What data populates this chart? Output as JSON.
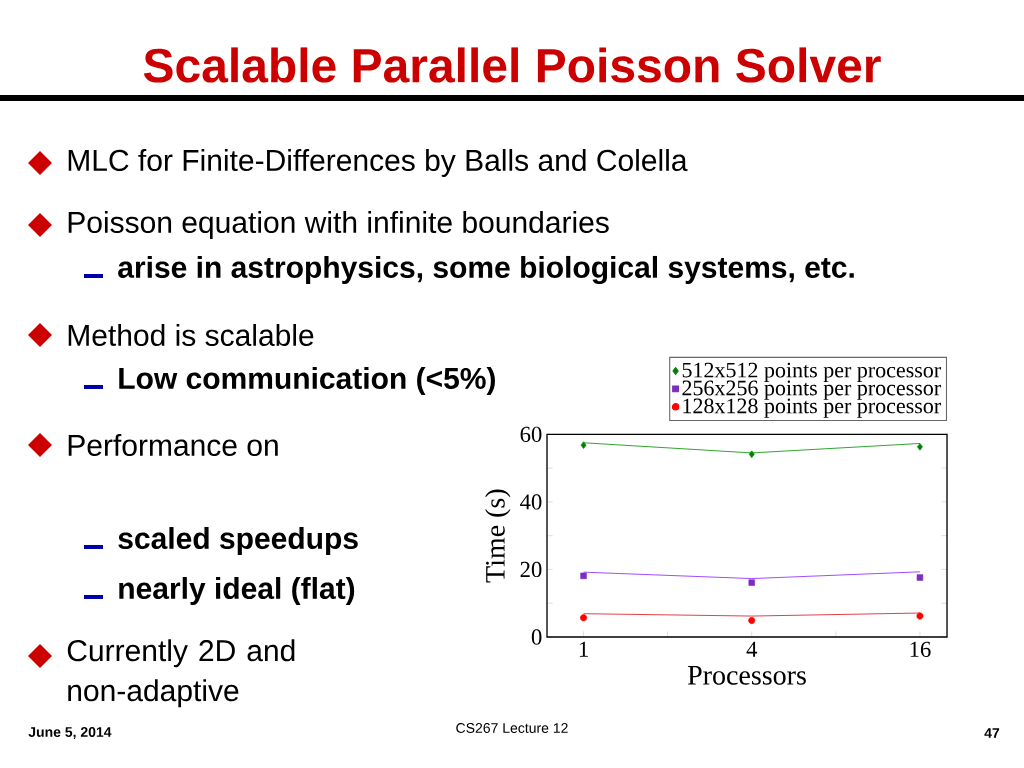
{
  "chart_data": {
    "type": "scatter",
    "title": "Scalable Parallel Poisson Solver",
    "xlabel": "Processors",
    "ylabel": "Time (s)",
    "x": [
      1,
      4,
      16
    ],
    "log": "x",
    "xlim": [
      0.74,
      20
    ],
    "ylim": [
      0,
      60
    ],
    "xticks": [
      1,
      4,
      16,
      {
        "value": 2,
        "label": null
      },
      {
        "value": 8,
        "label": null
      }
    ],
    "yticks": [
      0,
      20,
      40,
      60,
      {
        "value": 10,
        "label": null
      },
      {
        "value": 30,
        "label": null
      },
      {
        "value": 50,
        "label": null
      }
    ],
    "legend": "top right",
    "series": [
      {
        "name": "512x512 points per processor",
        "marker": "diamond",
        "color": "#008000",
        "values": [
          56.8,
          54.1,
          56.3
        ]
      },
      {
        "name": "256x256 points per processor",
        "marker": "square",
        "color": "#7b2fc0",
        "values": [
          18.1,
          16.1,
          17.6
        ]
      },
      {
        "name": "128x128 points per processor",
        "marker": "circle",
        "color": "#ff0000",
        "values": [
          5.7,
          4.9,
          6.2
        ]
      },
      {
        "type": "line",
        "marker": "none",
        "color": "#20a020",
        "values": [
          57.5,
          54.5,
          57.3
        ]
      },
      {
        "type": "line",
        "marker": "none",
        "color": "#9a40ff",
        "values": [
          19.2,
          17.3,
          19.3
        ]
      },
      {
        "type": "line",
        "marker": "none",
        "color": "#e0303a",
        "values": [
          6.9,
          6.2,
          7.1
        ]
      }
    ],
    "annotations": [
      "MLC for Finite-Differences by Balls and Colella",
      "Poisson equation with infinite boundaries",
      "arise in astrophysics, some biological systems, etc.",
      "Method is scalable",
      "Low communication (<5%)",
      "Performance on",
      "scaled speedups",
      "nearly ideal (flat)",
      "Currently 2D and non-adaptive",
      "June 5, 2014",
      "CS267 Lecture 12",
      "47"
    ]
  }
}
